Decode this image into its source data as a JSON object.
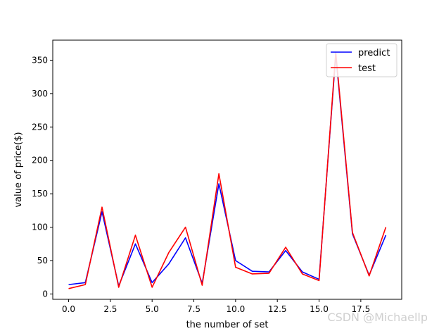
{
  "chart_data": {
    "type": "line",
    "xlabel": "the number of set",
    "ylabel": "value of price($)",
    "xlim": [
      -0.95,
      19.95
    ],
    "ylim": [
      -8,
      380
    ],
    "xticks": [
      0.0,
      2.5,
      5.0,
      7.5,
      10.0,
      12.5,
      15.0,
      17.5
    ],
    "xtick_labels": [
      "0.0",
      "2.5",
      "5.0",
      "7.5",
      "10.0",
      "12.5",
      "15.0",
      "17.5"
    ],
    "yticks": [
      0,
      50,
      100,
      150,
      200,
      250,
      300,
      350
    ],
    "ytick_labels": [
      "0",
      "50",
      "100",
      "150",
      "200",
      "250",
      "300",
      "350"
    ],
    "legend_position": "top-right",
    "grid": false,
    "x": [
      0,
      1,
      2,
      3,
      4,
      5,
      6,
      7,
      8,
      9,
      10,
      11,
      12,
      13,
      14,
      15,
      16,
      17,
      18,
      19
    ],
    "series": [
      {
        "name": "predict",
        "color": "#0000ff",
        "values": [
          14,
          17,
          123,
          12,
          75,
          17,
          45,
          84,
          16,
          165,
          50,
          34,
          33,
          65,
          33,
          22,
          358,
          90,
          28,
          88
        ]
      },
      {
        "name": "test",
        "color": "#ff0000",
        "values": [
          8,
          14,
          130,
          10,
          88,
          10,
          62,
          100,
          13,
          180,
          40,
          30,
          31,
          70,
          30,
          20,
          362,
          92,
          27,
          100
        ]
      }
    ]
  },
  "watermark": "CSDN @Michaellp"
}
